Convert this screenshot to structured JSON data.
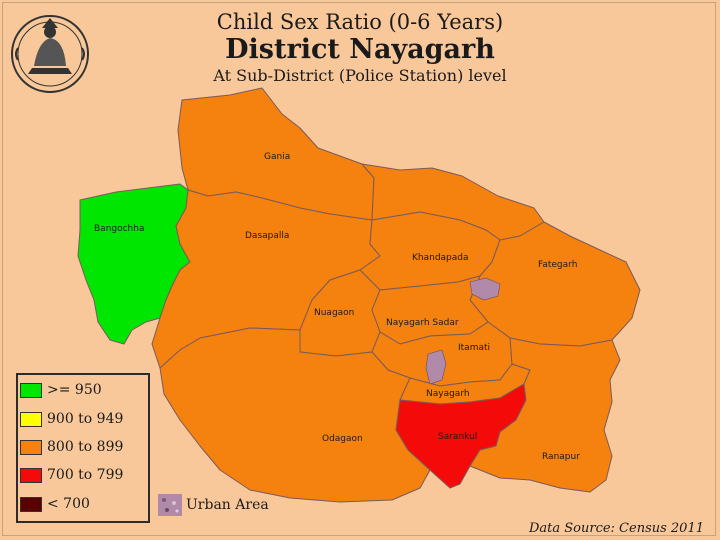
{
  "title": {
    "line1": "Child Sex Ratio (0-6 Years)",
    "line2": "District Nayagarh",
    "line3": "At Sub-District (Police Station) level"
  },
  "colors": {
    "background": "#f8c89a",
    "ge_950": "#00e600",
    "r900_949": "#ffff00",
    "r800_899": "#f5820f",
    "r700_799": "#f50a0a",
    "lt_700": "#5a0000",
    "urban": "#b08aa8"
  },
  "regions": [
    {
      "name": "Gania",
      "class": "800 to 899"
    },
    {
      "name": "Bangochha",
      "class": ">= 950"
    },
    {
      "name": "Dasapalla",
      "class": "800 to 899"
    },
    {
      "name": "Khandapada",
      "class": "800 to 899"
    },
    {
      "name": "Fategarh",
      "class": "800 to 899"
    },
    {
      "name": "Nuagaon",
      "class": "800 to 899"
    },
    {
      "name": "Nayagarh Sadar",
      "class": "800 to 899"
    },
    {
      "name": "Itamati",
      "class": "800 to 899"
    },
    {
      "name": "Nayagarh",
      "class": "800 to 899"
    },
    {
      "name": "Odagaon",
      "class": "800 to 899"
    },
    {
      "name": "Sarankul",
      "class": "700 to 799"
    },
    {
      "name": "Ranapur",
      "class": "800 to 899"
    }
  ],
  "legend": [
    {
      "label": ">= 950",
      "color": "#00e600"
    },
    {
      "label": "900 to 949",
      "color": "#ffff00"
    },
    {
      "label": "800 to 899",
      "color": "#f5820f"
    },
    {
      "label": "700 to 799",
      "color": "#f50a0a"
    },
    {
      "label": "< 700",
      "color": "#5a0000"
    }
  ],
  "urban_area_label": "Urban Area",
  "source": "Data Source: Census 2011",
  "icons": {
    "emblem": "state-emblem-icon"
  }
}
